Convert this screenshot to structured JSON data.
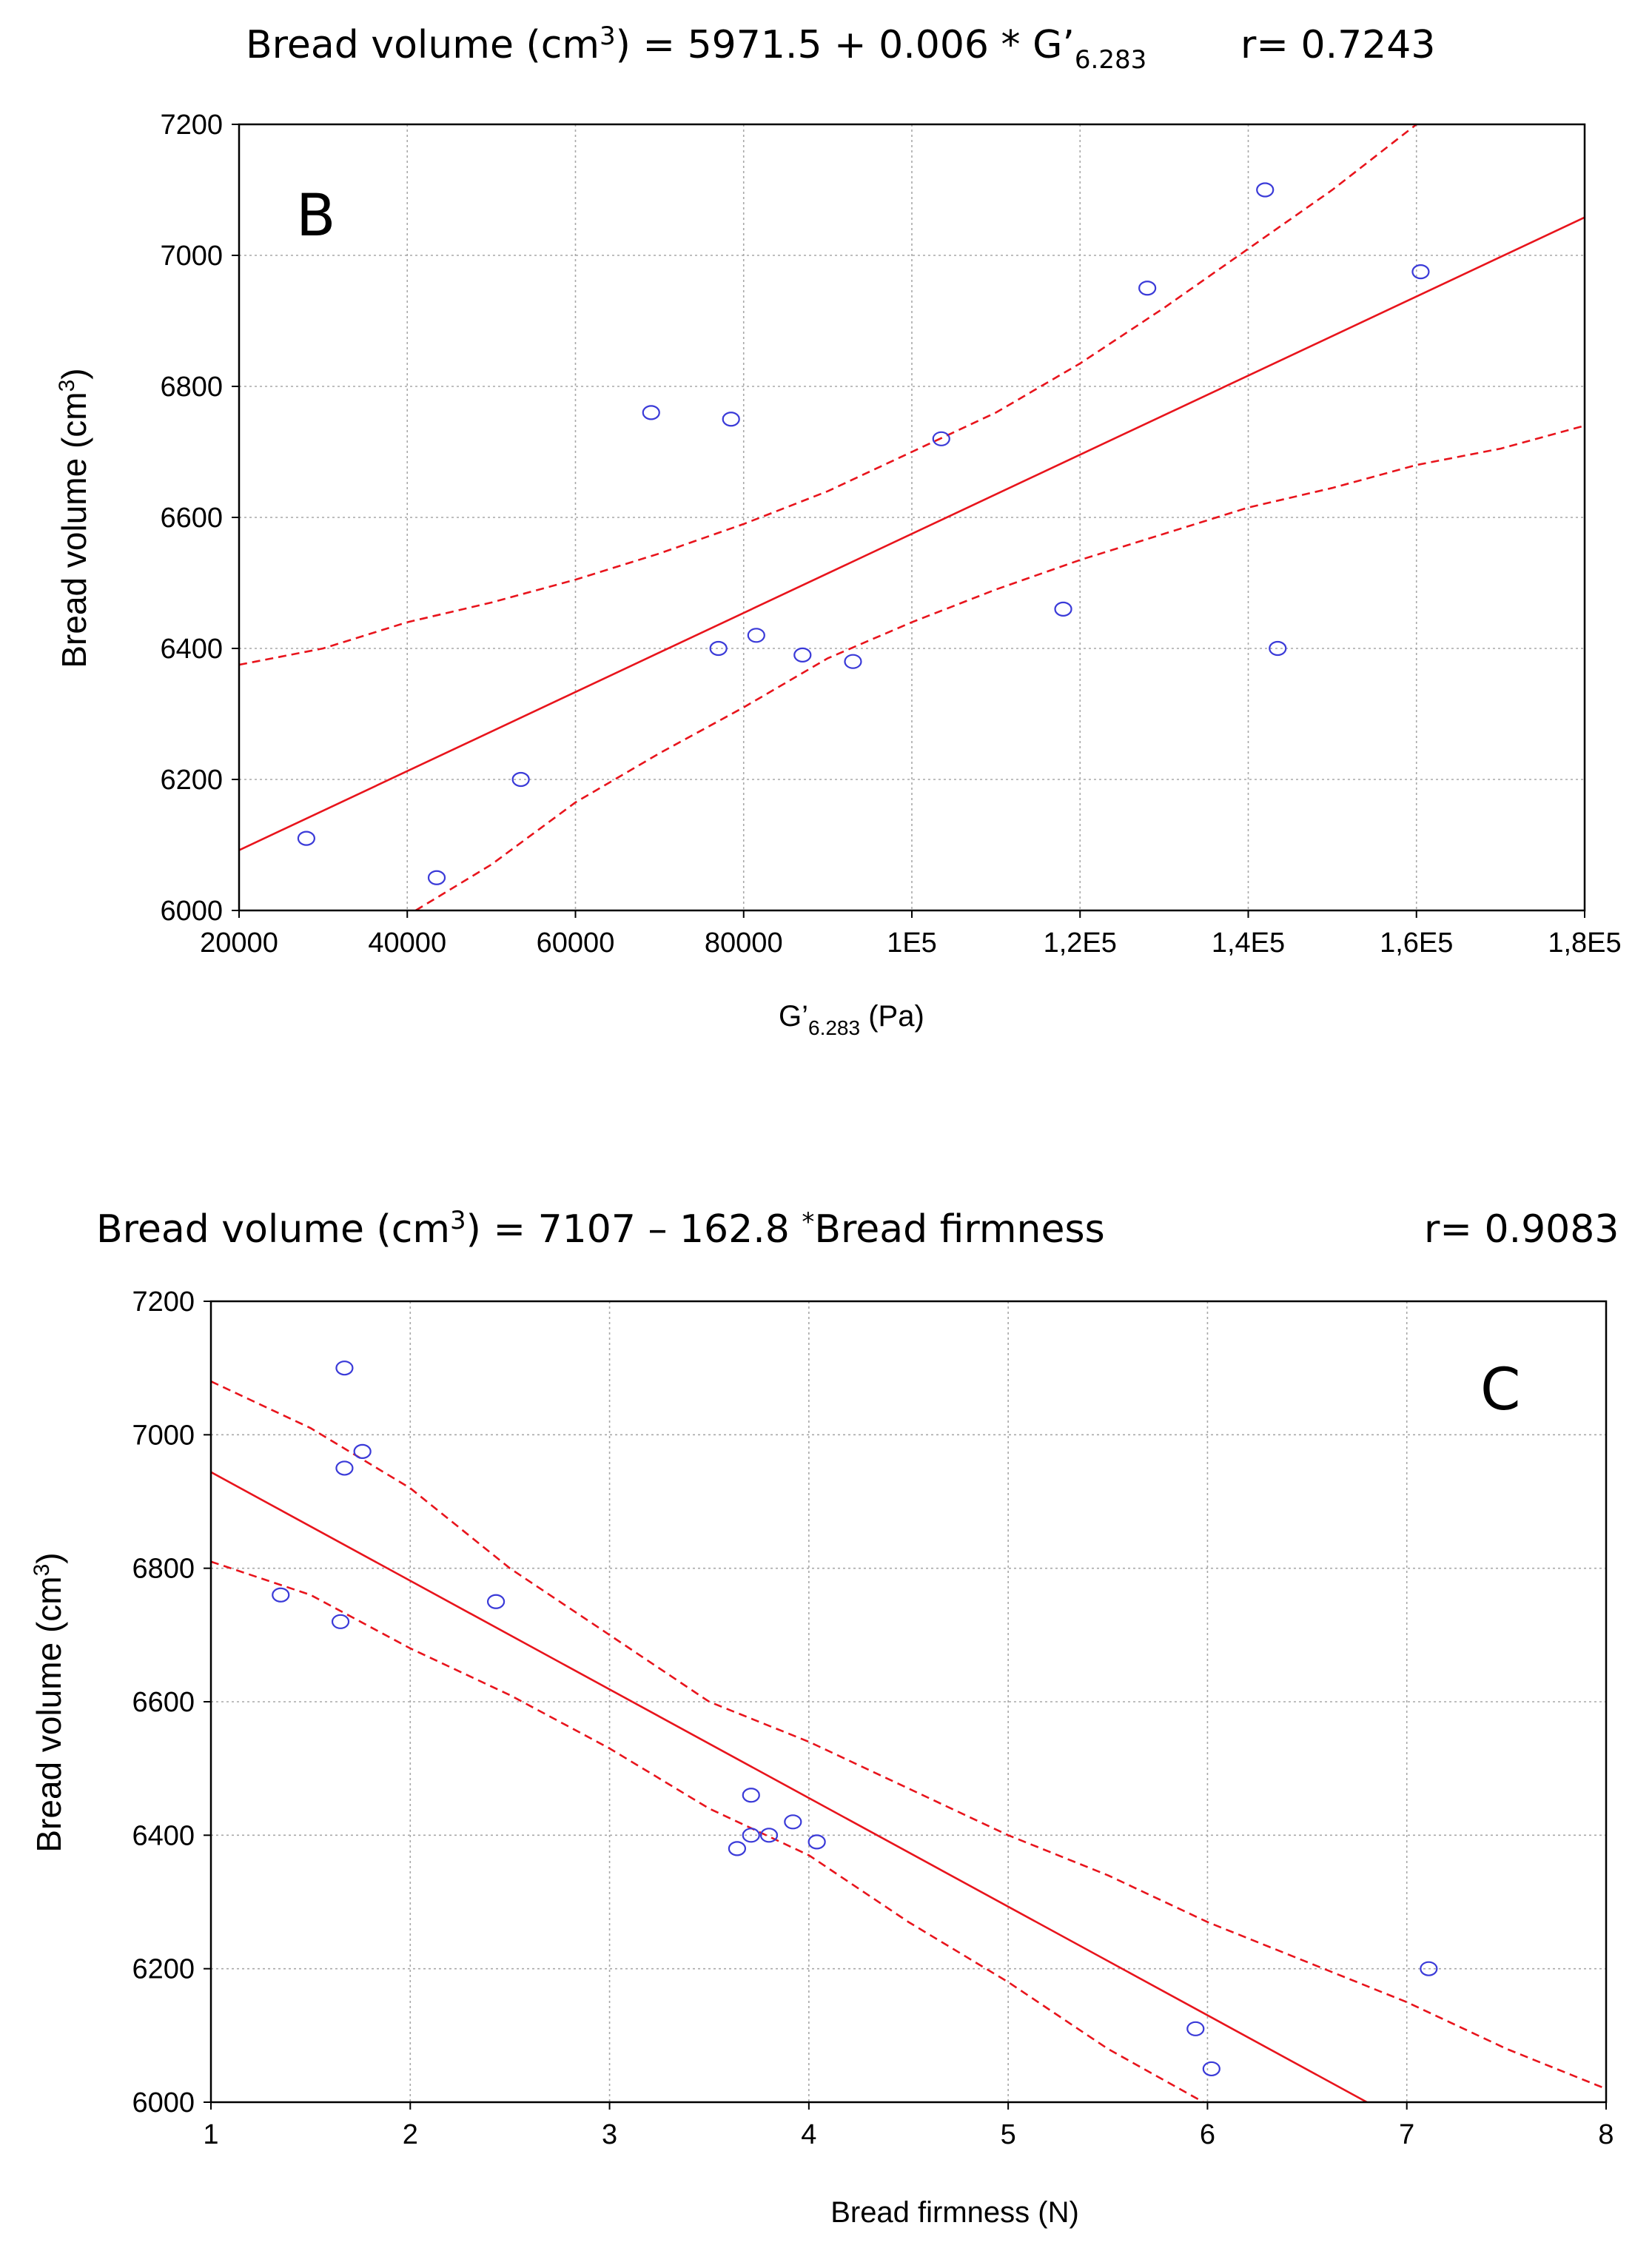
{
  "chart_data": [
    {
      "type": "scatter",
      "panel": "B",
      "title": {
        "prefix": "Bread  volume  (cm",
        "sup": "3",
        "equation": ") = 5971.5 + 0.006 * G’",
        "sub": "6.283",
        "r_text": "r= 0.7243"
      },
      "xlabel": {
        "main": "G’",
        "sub": "6.283",
        "unit": " (Pa)"
      },
      "ylabel": {
        "main": "Bread volume (cm",
        "sup": "3",
        "end": ")"
      },
      "xlim": [
        20000,
        180000
      ],
      "ylim": [
        6000,
        7200
      ],
      "x_ticks": [
        20000,
        40000,
        60000,
        80000,
        100000,
        120000,
        140000,
        160000,
        180000
      ],
      "x_tick_labels": [
        "20000",
        "40000",
        "60000",
        "80000",
        "1E5",
        "1,2E5",
        "1,4E5",
        "1,6E5",
        "1,8E5"
      ],
      "y_ticks": [
        6000,
        6200,
        6400,
        6600,
        6800,
        7000,
        7200
      ],
      "y_tick_labels": [
        "6000",
        "6200",
        "6400",
        "6600",
        "6800",
        "7000",
        "7200"
      ],
      "grid": true,
      "points": [
        {
          "x": 28000,
          "y": 6110
        },
        {
          "x": 43500,
          "y": 6050
        },
        {
          "x": 53500,
          "y": 6200
        },
        {
          "x": 69000,
          "y": 6760
        },
        {
          "x": 77000,
          "y": 6400
        },
        {
          "x": 78500,
          "y": 6750
        },
        {
          "x": 81500,
          "y": 6420
        },
        {
          "x": 87000,
          "y": 6390
        },
        {
          "x": 93000,
          "y": 6380
        },
        {
          "x": 103500,
          "y": 6720
        },
        {
          "x": 118000,
          "y": 6460
        },
        {
          "x": 128000,
          "y": 6950
        },
        {
          "x": 142000,
          "y": 7100
        },
        {
          "x": 143500,
          "y": 6400
        },
        {
          "x": 160500,
          "y": 6975
        }
      ],
      "fit_line": [
        {
          "x": 20000,
          "y": 6092
        },
        {
          "x": 180000,
          "y": 7058
        }
      ],
      "ci_upper": [
        {
          "x": 20000,
          "y": 6375
        },
        {
          "x": 30000,
          "y": 6400
        },
        {
          "x": 40000,
          "y": 6440
        },
        {
          "x": 50000,
          "y": 6470
        },
        {
          "x": 60000,
          "y": 6505
        },
        {
          "x": 70000,
          "y": 6545
        },
        {
          "x": 80000,
          "y": 6590
        },
        {
          "x": 90000,
          "y": 6640
        },
        {
          "x": 100000,
          "y": 6700
        },
        {
          "x": 110000,
          "y": 6760
        },
        {
          "x": 120000,
          "y": 6835
        },
        {
          "x": 130000,
          "y": 6920
        },
        {
          "x": 140000,
          "y": 7010
        },
        {
          "x": 150000,
          "y": 7100
        },
        {
          "x": 160000,
          "y": 7200
        }
      ],
      "ci_lower": [
        {
          "x": 41000,
          "y": 6000
        },
        {
          "x": 50000,
          "y": 6070
        },
        {
          "x": 60000,
          "y": 6165
        },
        {
          "x": 70000,
          "y": 6240
        },
        {
          "x": 80000,
          "y": 6310
        },
        {
          "x": 90000,
          "y": 6385
        },
        {
          "x": 100000,
          "y": 6440
        },
        {
          "x": 110000,
          "y": 6490
        },
        {
          "x": 120000,
          "y": 6535
        },
        {
          "x": 130000,
          "y": 6575
        },
        {
          "x": 140000,
          "y": 6615
        },
        {
          "x": 150000,
          "y": 6645
        },
        {
          "x": 160000,
          "y": 6680
        },
        {
          "x": 170000,
          "y": 6705
        },
        {
          "x": 180000,
          "y": 6740
        }
      ]
    },
    {
      "type": "scatter",
      "panel": "C",
      "title": {
        "prefix": "Bread  volume  (cm",
        "sup": "3",
        "equation": ") = 7107 – 162.8 ",
        "star": "*",
        "rest": "Bread  firmness",
        "r_text": "r= 0.9083"
      },
      "xlabel": {
        "main": "Bread firmness (N)"
      },
      "ylabel": {
        "main": "Bread volume (cm",
        "sup": "3",
        "end": ")"
      },
      "xlim": [
        1,
        8
      ],
      "ylim": [
        6000,
        7200
      ],
      "x_ticks": [
        1,
        2,
        3,
        4,
        5,
        6,
        7,
        8
      ],
      "x_tick_labels": [
        "1",
        "2",
        "3",
        "4",
        "5",
        "6",
        "7",
        "8"
      ],
      "y_ticks": [
        6000,
        6200,
        6400,
        6600,
        6800,
        7000,
        7200
      ],
      "y_tick_labels": [
        "6000",
        "6200",
        "6400",
        "6600",
        "6800",
        "7000",
        "7200"
      ],
      "grid": true,
      "points": [
        {
          "x": 1.35,
          "y": 6760
        },
        {
          "x": 1.65,
          "y": 6720
        },
        {
          "x": 1.67,
          "y": 7100
        },
        {
          "x": 1.67,
          "y": 6950
        },
        {
          "x": 1.76,
          "y": 6975
        },
        {
          "x": 2.43,
          "y": 6750
        },
        {
          "x": 3.64,
          "y": 6380
        },
        {
          "x": 3.71,
          "y": 6460
        },
        {
          "x": 3.71,
          "y": 6400
        },
        {
          "x": 3.8,
          "y": 6400
        },
        {
          "x": 3.92,
          "y": 6420
        },
        {
          "x": 4.04,
          "y": 6390
        },
        {
          "x": 5.94,
          "y": 6110
        },
        {
          "x": 6.02,
          "y": 6050
        },
        {
          "x": 7.11,
          "y": 6200
        }
      ],
      "fit_line": [
        {
          "x": 1,
          "y": 6944
        },
        {
          "x": 6.8,
          "y": 6000
        }
      ],
      "ci_upper": [
        {
          "x": 1,
          "y": 7080
        },
        {
          "x": 1.5,
          "y": 7010
        },
        {
          "x": 2,
          "y": 6920
        },
        {
          "x": 2.5,
          "y": 6800
        },
        {
          "x": 3,
          "y": 6700
        },
        {
          "x": 3.5,
          "y": 6600
        },
        {
          "x": 4,
          "y": 6540
        },
        {
          "x": 4.5,
          "y": 6470
        },
        {
          "x": 5,
          "y": 6400
        },
        {
          "x": 5.5,
          "y": 6340
        },
        {
          "x": 6,
          "y": 6270
        },
        {
          "x": 6.5,
          "y": 6210
        },
        {
          "x": 7,
          "y": 6150
        },
        {
          "x": 7.5,
          "y": 6080
        },
        {
          "x": 8,
          "y": 6020
        }
      ],
      "ci_lower": [
        {
          "x": 1,
          "y": 6810
        },
        {
          "x": 1.5,
          "y": 6760
        },
        {
          "x": 2,
          "y": 6680
        },
        {
          "x": 2.5,
          "y": 6610
        },
        {
          "x": 3,
          "y": 6530
        },
        {
          "x": 3.5,
          "y": 6440
        },
        {
          "x": 4,
          "y": 6370
        },
        {
          "x": 4.5,
          "y": 6270
        },
        {
          "x": 5,
          "y": 6180
        },
        {
          "x": 5.5,
          "y": 6080
        },
        {
          "x": 5.98,
          "y": 6000
        }
      ]
    }
  ]
}
